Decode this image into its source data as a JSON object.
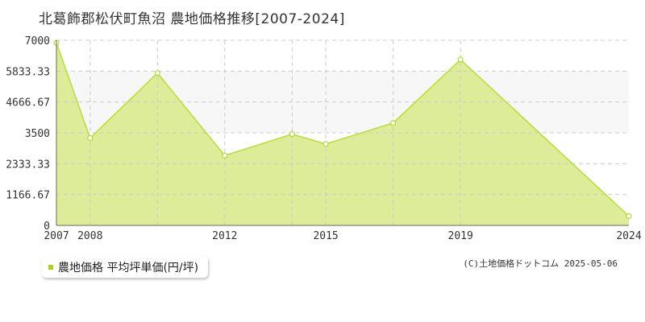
{
  "title": "北葛飾郡松伏町魚沼 農地価格推移[2007-2024]",
  "legend": {
    "label": "農地価格 平均坪単価(円/坪)"
  },
  "credit": "(C)土地価格ドットコム 2025-05-06",
  "colors": {
    "fill": "#dcec98",
    "line": "#b7dd3c",
    "marker": "#a8d420",
    "band": "#f7f7f7",
    "grid": "#cccccc"
  },
  "chart_data": {
    "type": "area",
    "x": [
      2007,
      2008,
      2010,
      2012,
      2014,
      2015,
      2017,
      2019,
      2024
    ],
    "series": [
      {
        "name": "農地価格 平均坪単価(円/坪)",
        "values": [
          6900,
          3300,
          5760,
          2640,
          3450,
          3080,
          3870,
          6270,
          350
        ]
      }
    ],
    "xlim": [
      2007,
      2024
    ],
    "ylim": [
      0,
      7000
    ],
    "x_ticks": [
      "2007",
      "2008",
      "2012",
      "2015",
      "2019",
      "2024"
    ],
    "y_ticks": [
      "0",
      "1166.67",
      "2333.33",
      "3500",
      "4666.67",
      "5833.33",
      "7000"
    ],
    "grid": true
  }
}
